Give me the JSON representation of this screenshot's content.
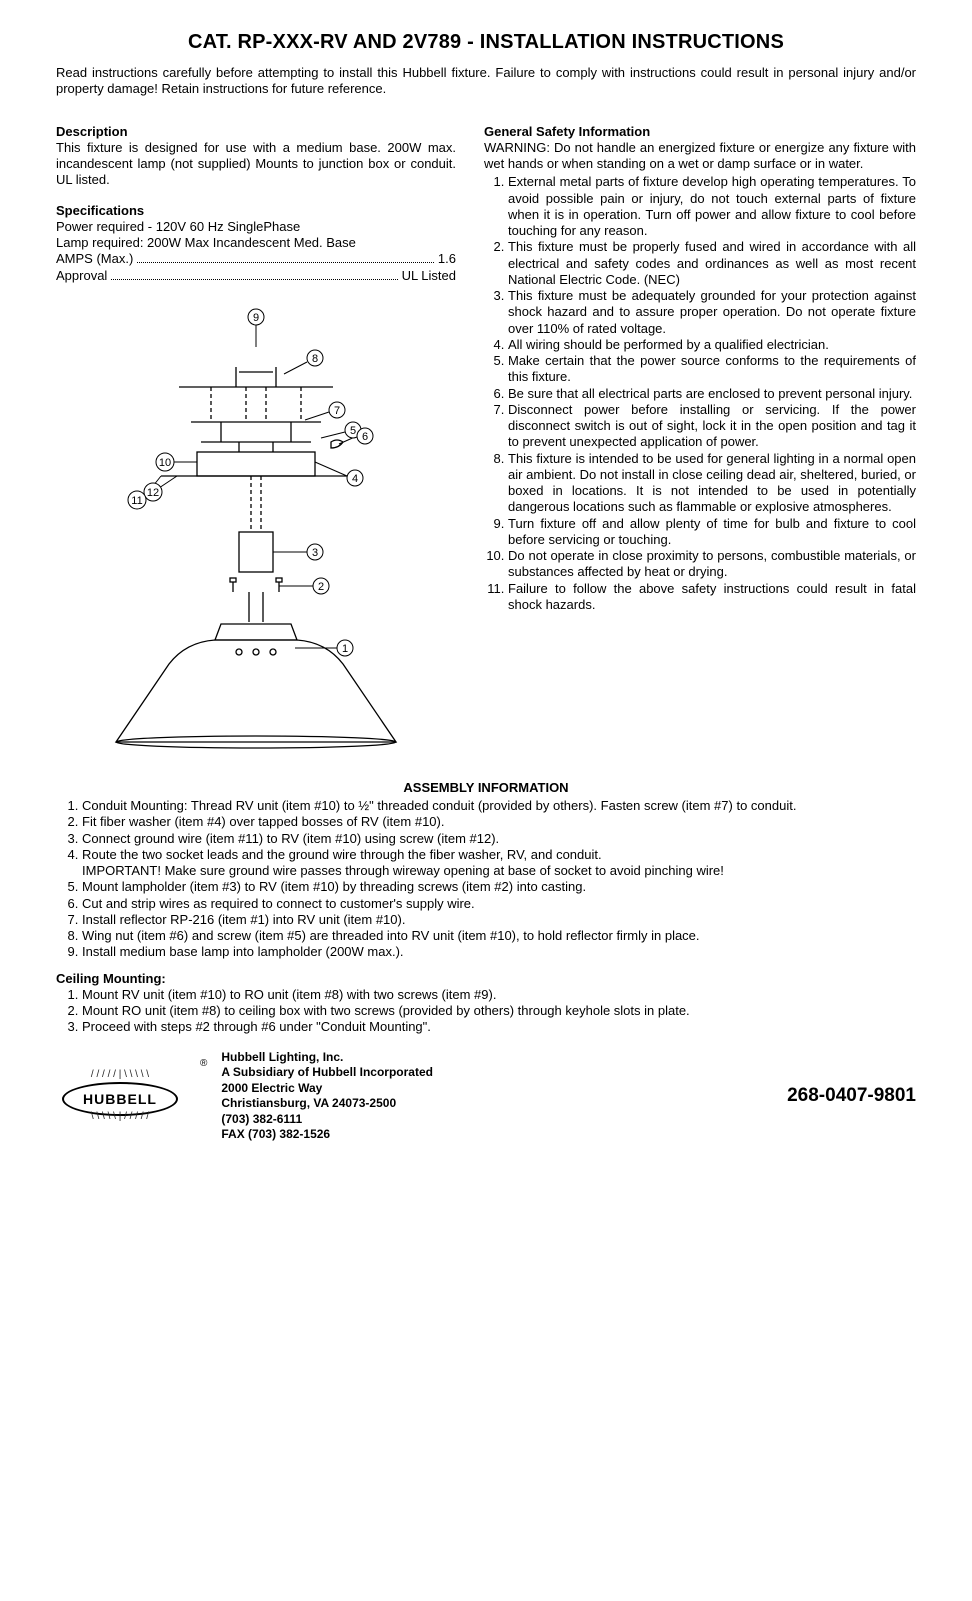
{
  "title": "CAT. RP-XXX-RV AND 2V789 - INSTALLATION INSTRUCTIONS",
  "intro": "Read instructions carefully before attempting to install this Hubbell fixture. Failure to comply with instructions could result in personal injury and/or property damage! Retain instructions for future reference.",
  "left": {
    "desc_title": "Description",
    "desc_body": "This fixture is designed for use with a medium base. 200W max. incandescent lamp (not supplied) Mounts to junction box or conduit. UL listed.",
    "spec_title": "Specifications",
    "spec_power": "Power required - 120V 60 Hz SinglePhase",
    "spec_lamp": "Lamp required: 200W Max Incandescent Med. Base",
    "spec_amps_label": "AMPS (Max.)",
    "spec_amps_val": "1.6",
    "spec_approval_label": "Approval",
    "spec_approval_val": "UL Listed"
  },
  "right": {
    "safety_title": "General Safety Information",
    "safety_warning": "WARNING: Do not handle an energized fixture or energize any fixture with wet hands or when standing on a wet or damp surface or in water.",
    "safety_items": [
      "External metal parts of fixture develop high operating temperatures. To avoid possible pain or injury, do not touch external parts of fixture when it is in operation. Turn off power and allow fixture to cool before touching for any reason.",
      "This fixture must be properly fused and wired in accordance with all electrical and safety codes and ordinances as well as most recent National Electric Code. (NEC)",
      "This fixture must be adequately grounded for your protection against shock hazard and to assure proper operation. Do not operate fixture over 110% of rated voltage.",
      "All wiring should be performed by a qualified electrician.",
      "Make certain that the power source conforms to the requirements of this fixture.",
      "Be sure that all electrical parts are enclosed to prevent personal injury.",
      "Disconnect power before installing or servicing. If the power disconnect switch is out of sight, lock it in the open position and tag it to prevent unexpected application of power.",
      "This fixture is intended to be used for general lighting in a normal open air ambient. Do not install in close ceiling dead air, sheltered, buried, or boxed in locations. It is not intended to be used in potentially dangerous locations such as flammable or explosive atmospheres.",
      "Turn fixture off and allow plenty of time for bulb and fixture to cool before servicing or touching.",
      "Do not operate in close proximity to persons, combustible materials, or substances affected by heat or drying.",
      "Failure to follow the above safety instructions could result in fatal shock hazards."
    ]
  },
  "assembly_title": "ASSEMBLY INFORMATION",
  "assembly_items": [
    "Conduit Mounting: Thread RV unit (item #10) to ½\" threaded conduit (provided by others). Fasten screw (item #7) to conduit.",
    "Fit fiber washer (item #4) over tapped bosses of RV (item #10).",
    "Connect ground wire (item #11) to RV (item #10) using screw (item #12).",
    "Route the two socket leads and the ground wire through the fiber washer, RV, and conduit.\nIMPORTANT! Make sure ground wire passes through wireway opening at base of socket to avoid pinching wire!",
    "Mount lampholder (item #3) to RV (item #10) by threading screws (item #2) into casting.",
    "Cut and strip wires as required to connect to customer's supply wire.",
    "Install reflector RP-216 (item #1) into RV unit (item #10).",
    "Wing nut (item #6) and screw (item #5) are threaded into RV unit (item #10), to hold reflector firmly in place.",
    "Install medium base lamp into lampholder (200W max.)."
  ],
  "ceiling_title": "Ceiling Mounting:",
  "ceiling_items": [
    "Mount RV unit (item #10) to RO unit (item #8) with two screws (item #9).",
    "Mount RO unit (item #8) to ceiling box with two screws (provided by others) through keyhole slots in plate.",
    "Proceed with steps #2 through #6 under \"Conduit Mounting\"."
  ],
  "footer": {
    "logo_text": "HUBBELL",
    "reg": "®",
    "company": "Hubbell Lighting, Inc.",
    "subsidiary": "A Subsidiary of Hubbell Incorporated",
    "addr1": "2000 Electric Way",
    "addr2": "Christiansburg, VA 24073-2500",
    "phone": "(703) 382-6111",
    "fax": "FAX (703) 382-1526",
    "doc_no": "268-0407-9801"
  },
  "diagram": {
    "callouts": [
      "1",
      "2",
      "3",
      "4",
      "5",
      "6",
      "7",
      "8",
      "9",
      "10",
      "11",
      "12"
    ]
  }
}
